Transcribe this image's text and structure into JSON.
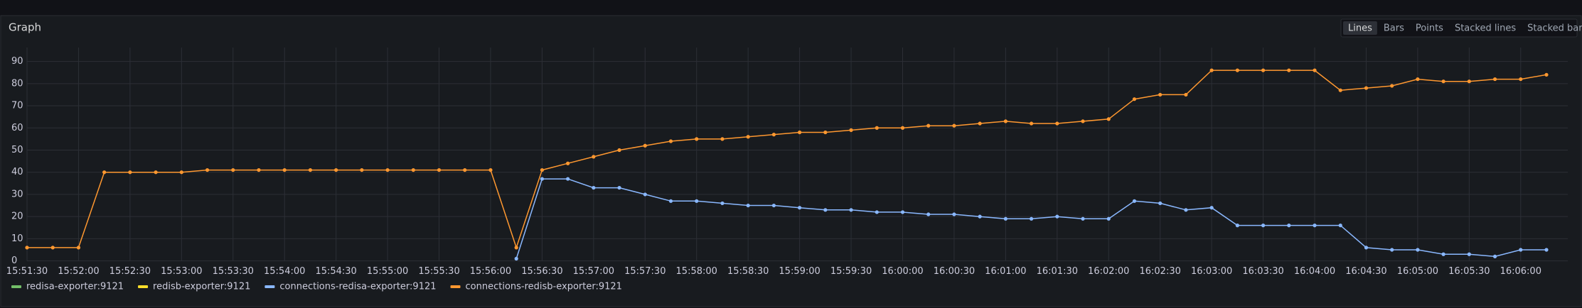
{
  "chart_data": {
    "type": "line",
    "title": "Graph",
    "x": [
      "15:51:30",
      "15:51:45",
      "15:52:00",
      "15:52:15",
      "15:52:30",
      "15:52:45",
      "15:53:00",
      "15:53:15",
      "15:53:30",
      "15:53:45",
      "15:54:00",
      "15:54:15",
      "15:54:30",
      "15:54:45",
      "15:55:00",
      "15:55:15",
      "15:55:30",
      "15:55:45",
      "15:56:00",
      "15:56:15",
      "15:56:30",
      "15:56:45",
      "15:57:00",
      "15:57:15",
      "15:57:30",
      "15:57:45",
      "15:58:00",
      "15:58:15",
      "15:58:30",
      "15:58:45",
      "15:59:00",
      "15:59:15",
      "15:59:30",
      "15:59:45",
      "16:00:00",
      "16:00:15",
      "16:00:30",
      "16:00:45",
      "16:01:00",
      "16:01:15",
      "16:01:30",
      "16:01:45",
      "16:02:00",
      "16:02:15",
      "16:02:30",
      "16:02:45",
      "16:03:00",
      "16:03:15",
      "16:03:30",
      "16:03:45",
      "16:04:00",
      "16:04:15",
      "16:04:30",
      "16:04:45",
      "16:05:00",
      "16:05:15",
      "16:05:30",
      "16:05:45",
      "16:06:00",
      "16:06:15"
    ],
    "series": [
      {
        "name": "redisa-exporter:9121",
        "color": "#73bf69",
        "values": [
          null,
          null,
          null,
          null,
          null,
          null,
          null,
          null,
          null,
          null,
          null,
          null,
          null,
          null,
          null,
          null,
          null,
          null,
          null,
          null,
          null,
          null,
          null,
          null,
          null,
          null,
          null,
          null,
          null,
          null,
          null,
          null,
          null,
          null,
          null,
          null,
          null,
          null,
          null,
          null,
          null,
          null,
          null,
          null,
          null,
          null,
          null,
          null,
          null,
          null,
          null,
          null,
          null,
          null,
          null,
          null,
          null,
          null,
          null,
          null
        ]
      },
      {
        "name": "redisb-exporter:9121",
        "color": "#fade2a",
        "values": [
          null,
          null,
          null,
          null,
          null,
          null,
          null,
          null,
          null,
          null,
          null,
          null,
          null,
          null,
          null,
          null,
          null,
          null,
          null,
          null,
          null,
          null,
          null,
          null,
          null,
          null,
          null,
          null,
          null,
          null,
          null,
          null,
          null,
          null,
          null,
          null,
          null,
          null,
          null,
          null,
          null,
          null,
          null,
          null,
          null,
          null,
          null,
          null,
          null,
          null,
          null,
          null,
          null,
          null,
          null,
          null,
          null,
          null,
          null,
          null
        ]
      },
      {
        "name": "connections-redisa-exporter:9121",
        "color": "#8ab8ff",
        "values": [
          null,
          null,
          null,
          null,
          null,
          null,
          null,
          null,
          null,
          null,
          null,
          null,
          null,
          null,
          null,
          null,
          null,
          null,
          null,
          1,
          37,
          37,
          33,
          33,
          30,
          27,
          27,
          26,
          25,
          25,
          24,
          23,
          23,
          22,
          22,
          21,
          21,
          20,
          19,
          19,
          20,
          19,
          19,
          27,
          26,
          23,
          24,
          16,
          16,
          16,
          16,
          16,
          6,
          5,
          5,
          3,
          3,
          2,
          5,
          5
        ]
      },
      {
        "name": "connections-redisb-exporter:9121",
        "color": "#ff9830",
        "values": [
          6,
          6,
          6,
          40,
          40,
          40,
          40,
          41,
          41,
          41,
          41,
          41,
          41,
          41,
          41,
          41,
          41,
          41,
          41,
          6,
          41,
          44,
          47,
          50,
          52,
          54,
          55,
          55,
          56,
          57,
          58,
          58,
          59,
          60,
          60,
          61,
          61,
          62,
          63,
          62,
          62,
          63,
          64,
          73,
          75,
          75,
          86,
          86,
          86,
          86,
          86,
          77,
          78,
          79,
          82,
          81,
          81,
          82,
          82,
          84
        ]
      }
    ],
    "ylim": [
      0,
      95
    ],
    "yticks": [
      0,
      10,
      20,
      30,
      40,
      50,
      60,
      70,
      80,
      90
    ],
    "xticks": [
      "15:51:30",
      "15:52:00",
      "15:52:30",
      "15:53:00",
      "15:53:30",
      "15:54:00",
      "15:54:30",
      "15:55:00",
      "15:55:30",
      "15:56:00",
      "15:56:30",
      "15:57:00",
      "15:57:30",
      "15:58:00",
      "15:58:30",
      "15:59:00",
      "15:59:30",
      "16:00:00",
      "16:00:30",
      "16:01:00",
      "16:01:30",
      "16:02:00",
      "16:02:30",
      "16:03:00",
      "16:03:30",
      "16:04:00",
      "16:04:30",
      "16:05:00",
      "16:05:30",
      "16:06:00"
    ],
    "grid": true,
    "points": true
  },
  "display_modes": {
    "options": [
      "Lines",
      "Bars",
      "Points",
      "Stacked lines",
      "Stacked bars"
    ],
    "active_index": 0
  }
}
